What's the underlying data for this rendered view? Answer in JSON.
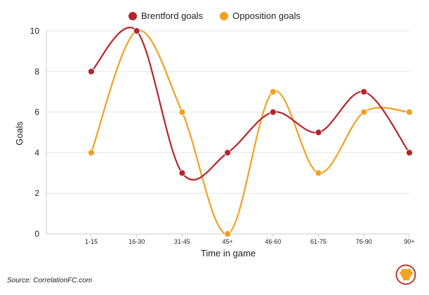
{
  "legend": {
    "brentford_label": "Brentford goals",
    "opposition_label": "Opposition goals"
  },
  "source": "Source: CorrelationFC.com",
  "logo_icon": "correlationfc-hex-logo-icon",
  "colors": {
    "brentford": "#b8242b",
    "opposition": "#f2a020",
    "logo_ring": "#c0392b",
    "logo_fill": "#f5a623"
  },
  "chart_data": {
    "type": "line",
    "title": "",
    "xlabel": "Time in game",
    "ylabel": "Goals",
    "categories": [
      "1-15",
      "16-30",
      "31-45",
      "45+",
      "46-60",
      "61-75",
      "76-90",
      "90+"
    ],
    "ylim": [
      0,
      10
    ],
    "yticks": [
      0,
      2,
      4,
      6,
      8,
      10
    ],
    "series": [
      {
        "name": "Brentford goals",
        "values": [
          8,
          10,
          3,
          4,
          6,
          5,
          7,
          4
        ]
      },
      {
        "name": "Opposition goals",
        "values": [
          4,
          10,
          6,
          0,
          7,
          3,
          6,
          6
        ]
      }
    ]
  }
}
